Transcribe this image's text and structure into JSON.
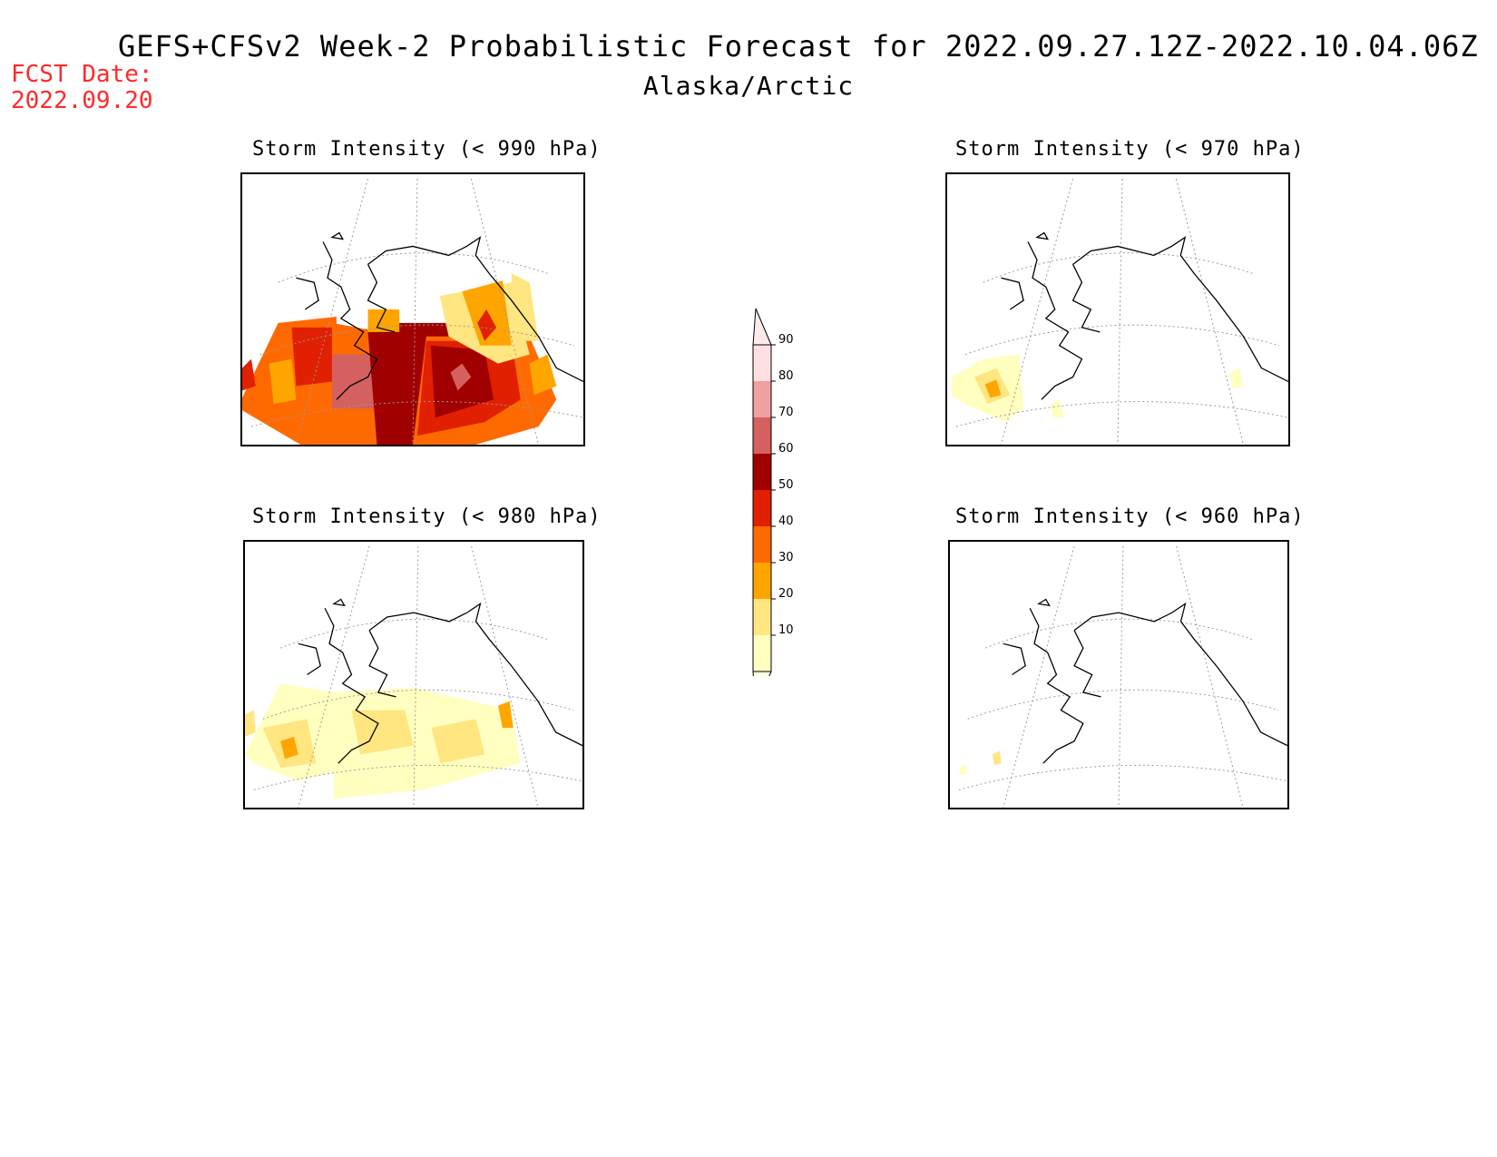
{
  "title": "GEFS+CFSv2 Week-2 Probabilistic Forecast for 2022.09.27.12Z-2022.10.04.06Z",
  "subtitle": "Alaska/Arctic",
  "fcst_date": {
    "label": "FCST Date:",
    "value": "2022.09.20"
  },
  "panels": [
    {
      "id": "p990",
      "title": "Storm Intensity (< 990 hPa)"
    },
    {
      "id": "p970",
      "title": "Storm Intensity (< 970 hPa)"
    },
    {
      "id": "p980",
      "title": "Storm Intensity (< 980 hPa)"
    },
    {
      "id": "p960",
      "title": "Storm Intensity (< 960 hPa)"
    }
  ],
  "colorbar": {
    "levels": [
      "10",
      "20",
      "30",
      "40",
      "50",
      "60",
      "70",
      "80",
      "90"
    ],
    "colors": [
      "#ffffc0",
      "#ffe680",
      "#ffa500",
      "#ff6a00",
      "#e02000",
      "#a00000",
      "#d46060",
      "#f0a0a0",
      "#ffe0e0"
    ]
  }
}
